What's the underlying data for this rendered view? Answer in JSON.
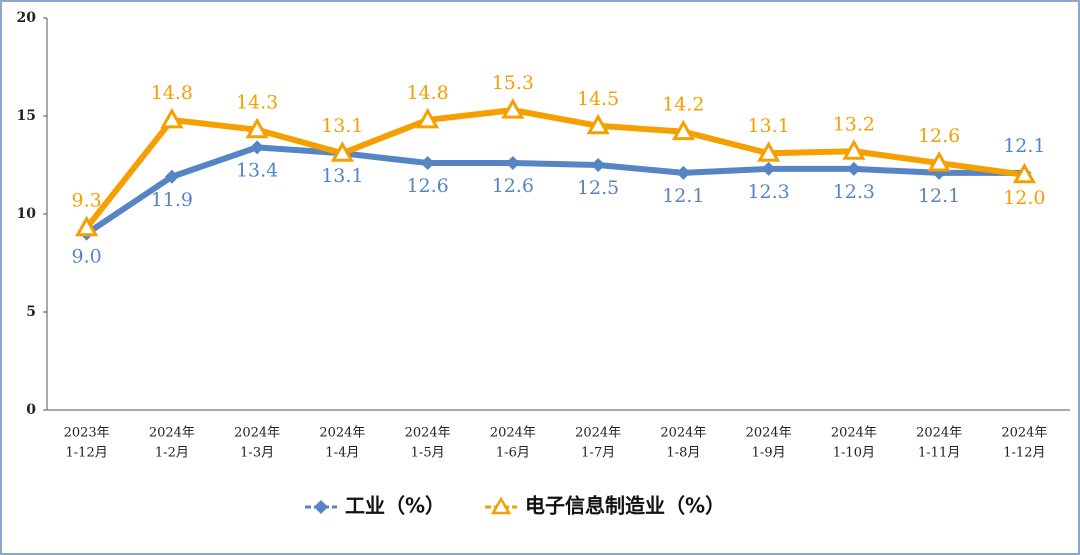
{
  "chart_data": {
    "type": "line",
    "categories": [
      [
        "2023年",
        "1-12月"
      ],
      [
        "2024年",
        "1-2月"
      ],
      [
        "2024年",
        "1-3月"
      ],
      [
        "2024年",
        "1-4月"
      ],
      [
        "2024年",
        "1-5月"
      ],
      [
        "2024年",
        "1-6月"
      ],
      [
        "2024年",
        "1-7月"
      ],
      [
        "2024年",
        "1-8月"
      ],
      [
        "2024年",
        "1-9月"
      ],
      [
        "2024年",
        "1-10月"
      ],
      [
        "2024年",
        "1-11月"
      ],
      [
        "2024年",
        "1-12月"
      ]
    ],
    "series": [
      {
        "name": "工业（%）",
        "color": "#5585c4",
        "marker": "diamond",
        "values": [
          9.0,
          11.9,
          13.4,
          13.1,
          12.6,
          12.6,
          12.5,
          12.1,
          12.3,
          12.3,
          12.1,
          12.1
        ],
        "value_labels": [
          "9.0",
          "11.9",
          "13.4",
          "13.1",
          "12.6",
          "12.6",
          "12.5",
          "12.1",
          "12.3",
          "12.3",
          "12.1",
          "12.1"
        ]
      },
      {
        "name": "电子信息制造业（%）",
        "color": "#f5a000",
        "marker": "triangle",
        "values": [
          9.3,
          14.8,
          14.3,
          13.1,
          14.8,
          15.3,
          14.5,
          14.2,
          13.1,
          13.2,
          12.6,
          12.0
        ],
        "value_labels": [
          "9.3",
          "14.8",
          "14.3",
          "13.1",
          "14.8",
          "15.3",
          "14.5",
          "14.2",
          "13.1",
          "13.2",
          "12.6",
          "12.0"
        ]
      }
    ],
    "ylim": [
      0,
      20
    ],
    "yticks": [
      0,
      5,
      10,
      15,
      20
    ],
    "grid": false,
    "legend": "bottom"
  }
}
